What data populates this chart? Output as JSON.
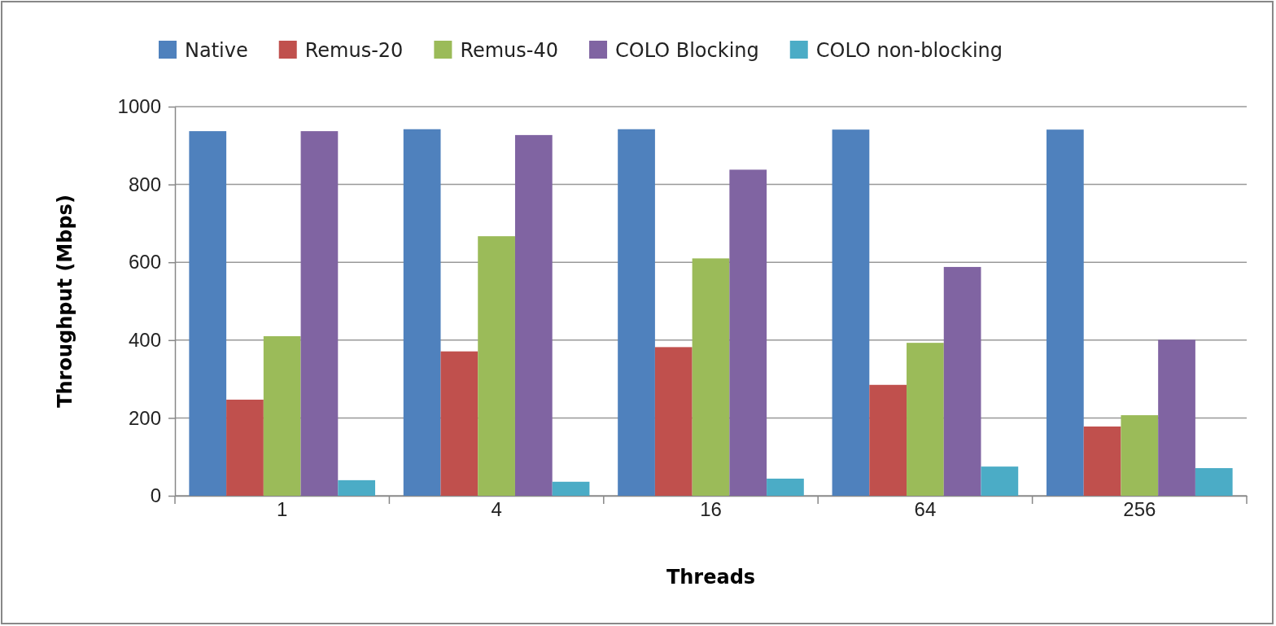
{
  "chart_data": {
    "type": "bar",
    "xlabel": "Threads",
    "ylabel": "Throughput (Mbps)",
    "categories": [
      "1",
      "4",
      "16",
      "64",
      "256"
    ],
    "series": [
      {
        "name": "Native",
        "color": "#4f81bd",
        "values": [
          937,
          942,
          942,
          941,
          941
        ]
      },
      {
        "name": "Remus-20",
        "color": "#c0504d",
        "values": [
          247,
          371,
          382,
          285,
          178
        ]
      },
      {
        "name": "Remus-40",
        "color": "#9bbb59",
        "values": [
          410,
          667,
          610,
          393,
          207
        ]
      },
      {
        "name": "COLO Blocking",
        "color": "#8064a2",
        "values": [
          937,
          927,
          838,
          588,
          401
        ]
      },
      {
        "name": "COLO non-blocking",
        "color": "#4bacc6",
        "values": [
          40,
          36,
          44,
          75,
          71
        ]
      }
    ],
    "ylim": [
      0,
      1000
    ],
    "yticks": [
      0,
      200,
      400,
      600,
      800,
      1000
    ],
    "grid": "y",
    "legend": "top"
  }
}
